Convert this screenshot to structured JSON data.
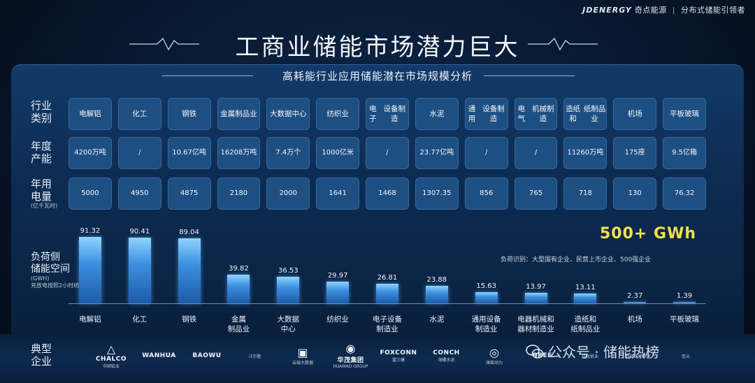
{
  "brand": {
    "logo": "JDENERGY",
    "name": "奇点能源",
    "slogan": "分布式储能引领者"
  },
  "title": "工商业储能市场潜力巨大",
  "subtitle": "高耗能行业应用储能潜在市场规模分析",
  "row_labels": {
    "industry": [
      "行业",
      "类别"
    ],
    "output": [
      "年度",
      "产能"
    ],
    "power": [
      "年用",
      "电量"
    ],
    "power_unit": "(亿千瓦时)",
    "storage": [
      "负荷侧",
      "储能空间"
    ],
    "storage_unit": "(GWH)",
    "storage_note": "充放电按照2小时统计",
    "companies": [
      "典型",
      "企业"
    ]
  },
  "industries": [
    {
      "name": [
        "电解铝"
      ],
      "output": "4200万吨",
      "power": "5000"
    },
    {
      "name": [
        "化工"
      ],
      "output": "/",
      "power": "4950"
    },
    {
      "name": [
        "钢铁"
      ],
      "output": "10.67亿吨",
      "power": "4875"
    },
    {
      "name": [
        "金属",
        "制品业"
      ],
      "output": "16208万吨",
      "power": "2180"
    },
    {
      "name": [
        "大数据",
        "中心"
      ],
      "output": "7.4万个",
      "power": "2000"
    },
    {
      "name": [
        "纺织业"
      ],
      "output": "1000亿米",
      "power": "1641"
    },
    {
      "name": [
        "电子",
        "设备制造"
      ],
      "output": "/",
      "power": "1468"
    },
    {
      "name": [
        "水泥"
      ],
      "output": "23.77亿吨",
      "power": "1307.35"
    },
    {
      "name": [
        "通用",
        "设备制造"
      ],
      "output": "/",
      "power": "856"
    },
    {
      "name": [
        "电气",
        "机械制造"
      ],
      "output": "/",
      "power": "765"
    },
    {
      "name": [
        "造纸和",
        "纸制品业"
      ],
      "output": "11260万吨",
      "power": "718"
    },
    {
      "name": [
        "机场"
      ],
      "output": "175座",
      "power": "130"
    },
    {
      "name": [
        "平板玻璃"
      ],
      "output": "9.5亿箱",
      "power": "76.32"
    }
  ],
  "chart_data": {
    "type": "bar",
    "categories": [
      [
        "电解铝"
      ],
      [
        "化工"
      ],
      [
        "钢铁"
      ],
      [
        "金属",
        "制品业"
      ],
      [
        "大数据",
        "中心"
      ],
      [
        "纺织业"
      ],
      [
        "电子设备",
        "制造业"
      ],
      [
        "水泥"
      ],
      [
        "通用设备",
        "制造业"
      ],
      [
        "电器机械和",
        "器材制造业"
      ],
      [
        "造纸和",
        "纸制品业"
      ],
      [
        "机场"
      ],
      [
        "平板玻璃"
      ]
    ],
    "values": [
      91.32,
      90.41,
      89.04,
      39.82,
      36.53,
      29.97,
      26.81,
      23.88,
      15.63,
      13.97,
      13.11,
      2.37,
      1.39
    ],
    "value_labels": [
      "91.32",
      "90.41",
      "89.04",
      "39.82",
      "36.53",
      "29.97",
      "26.81",
      "23.88",
      "15.63",
      "13.97",
      "13.11",
      "2.37",
      "1.39"
    ],
    "ylim": [
      0,
      100
    ],
    "total": "500+  GWh",
    "note": "负荷识别：大型国有企业、民营上市企业、500强企业"
  },
  "companies": [
    {
      "mark": "△",
      "text": "CHALCO",
      "sub": "中国铝业"
    },
    {
      "mark": "",
      "text": "WANHUA",
      "sub": ""
    },
    {
      "mark": "",
      "text": "BAOWU",
      "sub": ""
    },
    {
      "mark": "",
      "text": "",
      "sub": "汪尔胜"
    },
    {
      "mark": "▣",
      "text": "",
      "sub": "云端大数据"
    },
    {
      "mark": "◉",
      "text": "华茂集团",
      "sub": "HUAMAO GROUP"
    },
    {
      "mark": "",
      "text": "FOXCONN",
      "sub": "富士康"
    },
    {
      "mark": "",
      "text": "CONCH",
      "sub": "海螺水泥"
    },
    {
      "mark": "◎",
      "text": "",
      "sub": "潍柴动力"
    },
    {
      "mark": "",
      "text": "GREE",
      "sub": ""
    },
    {
      "mark": "",
      "text": "",
      "sub": "玖龙纸业"
    },
    {
      "mark": "",
      "text": "",
      "sub": "西部机场集团"
    },
    {
      "mark": "",
      "text": "",
      "sub": "信义"
    }
  ],
  "watermark": "公众号 · 储能热榜",
  "colors": {
    "bar": "#3c90e0",
    "total": "#f3e04a",
    "cell": "#1e4f83"
  }
}
